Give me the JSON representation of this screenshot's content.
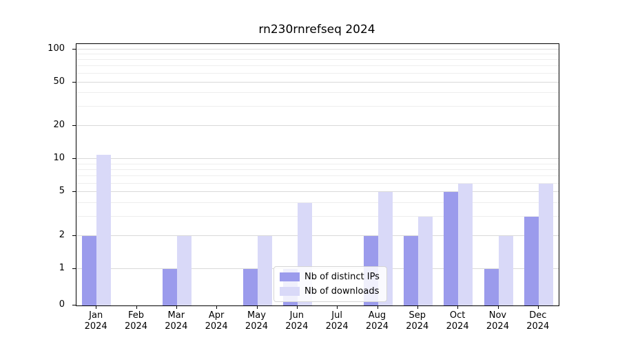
{
  "chart_data": {
    "type": "bar",
    "title": "rn230rnrefseq 2024",
    "categories": [
      "Jan",
      "Feb",
      "Mar",
      "Apr",
      "May",
      "Jun",
      "Jul",
      "Aug",
      "Sep",
      "Oct",
      "Nov",
      "Dec"
    ],
    "year": "2024",
    "series": [
      {
        "name": "Nb of distinct IPs",
        "color": "#9b9bec",
        "values": [
          2,
          0,
          1,
          0,
          1,
          1,
          0,
          2,
          2,
          5,
          1,
          3
        ]
      },
      {
        "name": "Nb of downloads",
        "color": "#d9d9f8",
        "values": [
          11,
          0,
          2,
          0,
          2,
          4,
          0,
          5,
          3,
          6,
          2,
          6
        ]
      }
    ],
    "yticks": [
      0,
      1,
      2,
      5,
      10,
      20,
      50,
      100
    ],
    "yscale": "symlog",
    "ylim": [
      0,
      110
    ],
    "grid": true,
    "legend_position": "lower center"
  }
}
